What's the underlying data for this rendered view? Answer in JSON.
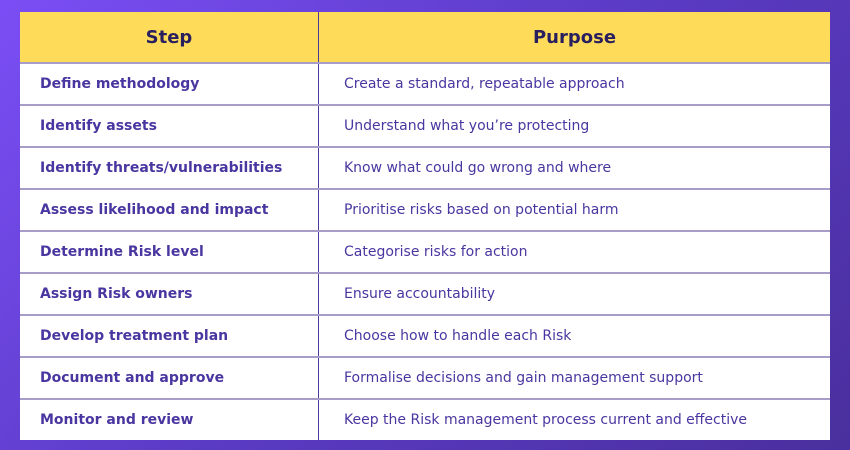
{
  "table": {
    "headers": [
      "Step",
      "Purpose"
    ],
    "rows": [
      [
        "Define methodology",
        "Create a standard, repeatable approach"
      ],
      [
        "Identify assets",
        "Understand what you’re protecting"
      ],
      [
        "Identify threats/vulnerabilities",
        "Know what could go wrong and where"
      ],
      [
        "Assess likelihood and impact",
        "Prioritise risks based on potential harm"
      ],
      [
        "Determine Risk level",
        "Categorise risks for action"
      ],
      [
        "Assign Risk owners",
        "Ensure accountability"
      ],
      [
        "Develop treatment plan",
        "Choose how to handle each Risk"
      ],
      [
        "Document and approve",
        "Formalise decisions and gain management support"
      ],
      [
        "Monitor and review",
        "Keep the Risk management process current and effective"
      ]
    ]
  },
  "colors": {
    "header_bg": "#fedc5a",
    "background": "#6a45d8",
    "text": "#4a36a0"
  }
}
